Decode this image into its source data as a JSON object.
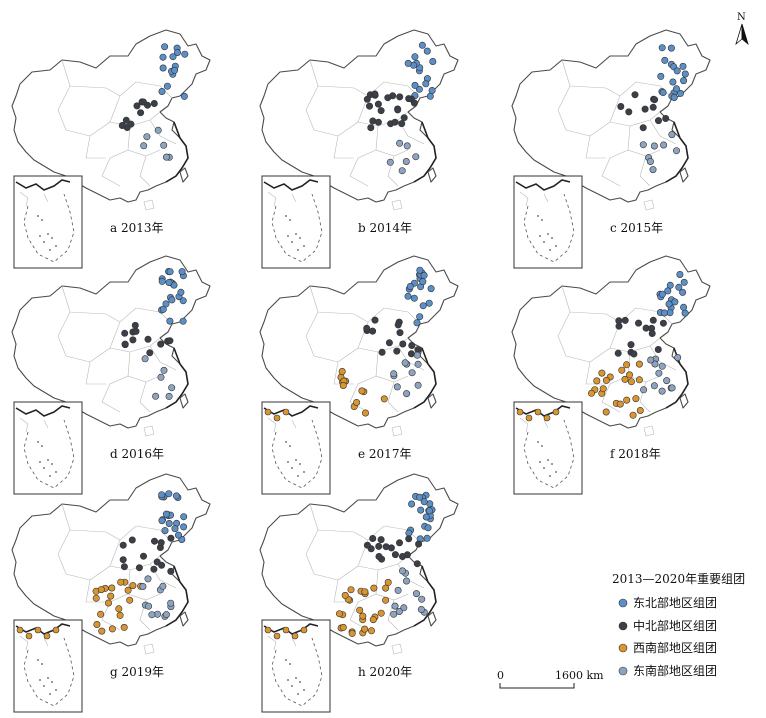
{
  "legend": {
    "title": "2013—2020年重要组团",
    "items": [
      {
        "label": "东北部地区组团",
        "color": "#5b8fc7"
      },
      {
        "label": "中北部地区组团",
        "color": "#3a3f48"
      },
      {
        "label": "西南部地区组团",
        "color": "#d9952f"
      },
      {
        "label": "东南部地区组团",
        "color": "#8da4c0"
      }
    ]
  },
  "scale": {
    "start": "0",
    "end": "1600 km"
  },
  "north": "N",
  "panels": [
    {
      "label": "a 2013年",
      "counts": {
        "ne": 14,
        "nc": 10,
        "sw": 0,
        "se": 6
      }
    },
    {
      "label": "b 2014年",
      "counts": {
        "ne": 16,
        "nc": 22,
        "sw": 0,
        "se": 6
      }
    },
    {
      "label": "c 2015年",
      "counts": {
        "ne": 18,
        "nc": 10,
        "sw": 0,
        "se": 8
      }
    },
    {
      "label": "d 2016年",
      "counts": {
        "ne": 20,
        "nc": 12,
        "sw": 0,
        "se": 6
      }
    },
    {
      "label": "e 2017年",
      "counts": {
        "ne": 18,
        "nc": 14,
        "sw": 12,
        "se": 10
      }
    },
    {
      "label": "f 2018年",
      "counts": {
        "ne": 18,
        "nc": 14,
        "sw": 22,
        "se": 12
      }
    },
    {
      "label": "g 2019年",
      "counts": {
        "ne": 20,
        "nc": 14,
        "sw": 20,
        "se": 12
      }
    },
    {
      "label": "h 2020年",
      "counts": {
        "ne": 20,
        "nc": 16,
        "sw": 26,
        "se": 12
      }
    }
  ]
}
